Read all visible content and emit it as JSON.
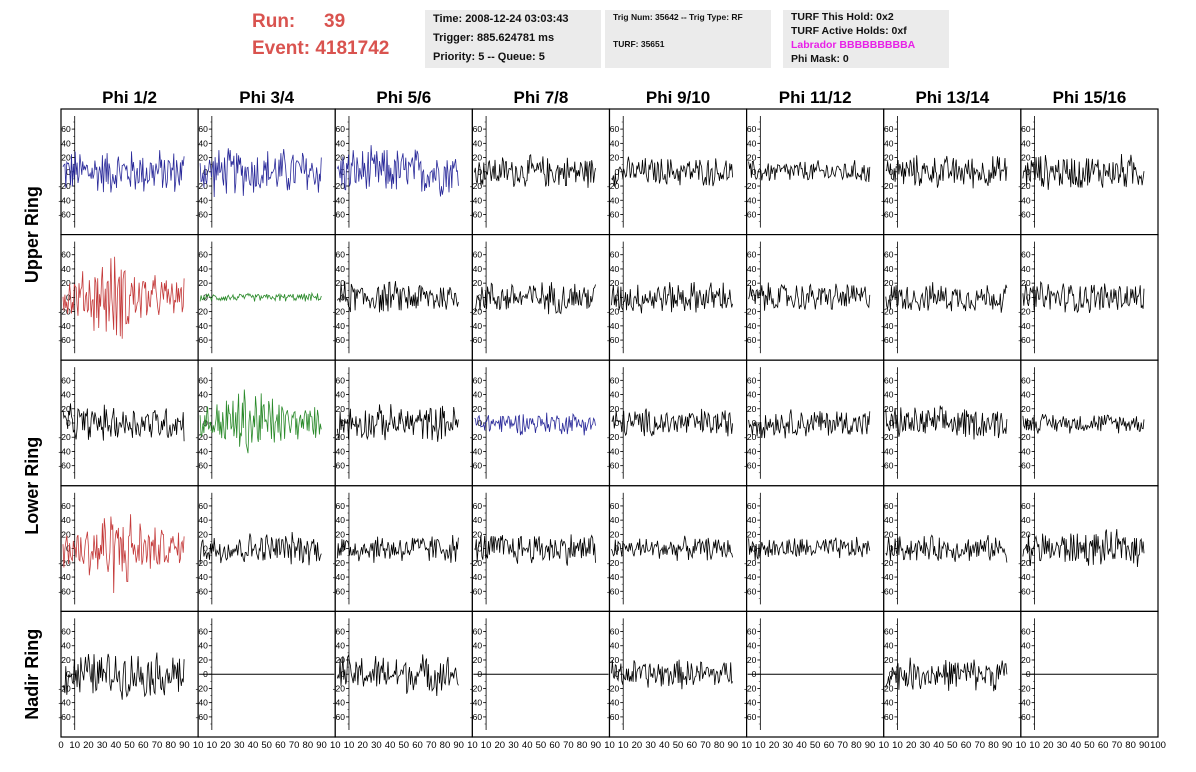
{
  "header": {
    "run_label": "Run:",
    "run_value": "39",
    "event_label": "Event:",
    "event_value": "4181742",
    "time": "Time: 2008-12-24 03:03:43",
    "trigger": "Trigger: 885.624781 ms",
    "priority": "Priority: 5 -- Queue: 5",
    "trig_num": "Trig Num: 35642 -- Trig Type: RF",
    "turf": "TURF: 35651",
    "turf_hold": "TURF This Hold: 0x2",
    "turf_active": "TURF Active Holds: 0xf",
    "labrador": "Labrador BBBBBBBBBA",
    "phi_mask": "Phi Mask: 0"
  },
  "colors": {
    "header_red": "#d9534f",
    "labrador_magenta": "#e820e8",
    "trace_black": "#000000",
    "trace_blue": "#2a2a9a",
    "trace_red": "#c43a3a",
    "trace_green": "#2a8a2a"
  },
  "chart_data": {
    "type": "line",
    "columns": [
      "Phi 1/2",
      "Phi 3/4",
      "Phi 5/6",
      "Phi 7/8",
      "Phi 9/10",
      "Phi 11/12",
      "Phi 13/14",
      "Phi 15/16"
    ],
    "row_labels": [
      {
        "label": "Upper Ring",
        "rows": [
          0,
          1
        ]
      },
      {
        "label": "Lower Ring",
        "rows": [
          2,
          3
        ]
      },
      {
        "label": "Nadir Ring",
        "rows": [
          4
        ]
      }
    ],
    "xlim": [
      0,
      100
    ],
    "ylim": [
      -70,
      70
    ],
    "yticks": [
      -60,
      -40,
      -20,
      0,
      20,
      40,
      60
    ],
    "xtick_labels": [
      "0",
      "10",
      "20",
      "30",
      "40",
      "50",
      "60",
      "70",
      "80",
      "90",
      "10",
      "10",
      "20",
      "30",
      "40",
      "50",
      "60",
      "70",
      "80",
      "90",
      "10",
      "10",
      "20",
      "30",
      "40",
      "50",
      "60",
      "70",
      "80",
      "90",
      "10",
      "10",
      "20",
      "30",
      "40",
      "50",
      "60",
      "70",
      "80",
      "90",
      "10",
      "10",
      "20",
      "30",
      "40",
      "50",
      "60",
      "70",
      "80",
      "90",
      "10",
      "10",
      "20",
      "30",
      "40",
      "50",
      "60",
      "70",
      "80",
      "90",
      "10",
      "10",
      "20",
      "30",
      "40",
      "50",
      "60",
      "70",
      "80",
      "90",
      "10",
      "10",
      "20",
      "30",
      "40",
      "50",
      "60",
      "70",
      "80",
      "90",
      "100"
    ],
    "panels": [
      [
        {
          "color": "blue",
          "amp": 28
        },
        {
          "color": "blue",
          "amp": 30
        },
        {
          "color": "blue",
          "amp": 30
        },
        {
          "color": "black",
          "amp": 20
        },
        {
          "color": "black",
          "amp": 18
        },
        {
          "color": "black",
          "amp": 14
        },
        {
          "color": "black",
          "amp": 20
        },
        {
          "color": "black",
          "amp": 22
        }
      ],
      [
        {
          "color": "red",
          "amp": 40
        },
        {
          "color": "green",
          "amp": 5
        },
        {
          "color": "black",
          "amp": 20
        },
        {
          "color": "black",
          "amp": 20
        },
        {
          "color": "black",
          "amp": 20
        },
        {
          "color": "black",
          "amp": 18
        },
        {
          "color": "black",
          "amp": 18
        },
        {
          "color": "black",
          "amp": 20
        }
      ],
      [
        {
          "color": "black",
          "amp": 22
        },
        {
          "color": "green",
          "amp": 35
        },
        {
          "color": "black",
          "amp": 22
        },
        {
          "color": "blue",
          "amp": 14
        },
        {
          "color": "black",
          "amp": 18
        },
        {
          "color": "black",
          "amp": 18
        },
        {
          "color": "black",
          "amp": 20
        },
        {
          "color": "black",
          "amp": 12
        }
      ],
      [
        {
          "color": "red",
          "amp": 40
        },
        {
          "color": "black",
          "amp": 20
        },
        {
          "color": "black",
          "amp": 18
        },
        {
          "color": "black",
          "amp": 20
        },
        {
          "color": "black",
          "amp": 14
        },
        {
          "color": "black",
          "amp": 14
        },
        {
          "color": "black",
          "amp": 16
        },
        {
          "color": "black",
          "amp": 22
        }
      ],
      [
        {
          "color": "black",
          "amp": 28
        },
        {
          "color": "flat",
          "amp": 0
        },
        {
          "color": "black",
          "amp": 24
        },
        {
          "color": "flat",
          "amp": 0
        },
        {
          "color": "black",
          "amp": 18
        },
        {
          "color": "flat",
          "amp": 0
        },
        {
          "color": "black",
          "amp": 20
        },
        {
          "color": "flat",
          "amp": 0
        }
      ]
    ]
  }
}
